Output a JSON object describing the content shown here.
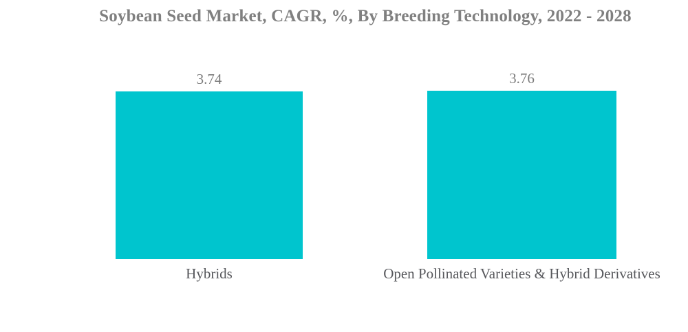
{
  "title": "Soybean Seed Market, CAGR, %, By Breeding Technology, 2022 - 2028",
  "chart_data": {
    "type": "bar",
    "title": "Soybean Seed Market, CAGR, %, By Breeding Technology, 2022 - 2028",
    "categories": [
      "Hybrids",
      "Open Pollinated Varieties & Hybrid Derivatives"
    ],
    "values": [
      3.74,
      3.76
    ],
    "value_labels": [
      "3.74",
      "3.76"
    ],
    "xlabel": "",
    "ylabel": "",
    "ylim": [
      0,
      3.8
    ],
    "grid": false,
    "legend": "none",
    "data_labels_position": "above-bars"
  },
  "colors": {
    "bar": "#00C5CE",
    "title_text": "#808080",
    "value_text": "#7A7A7A",
    "category_text": "#57585C",
    "background": "#FFFFFF"
  }
}
